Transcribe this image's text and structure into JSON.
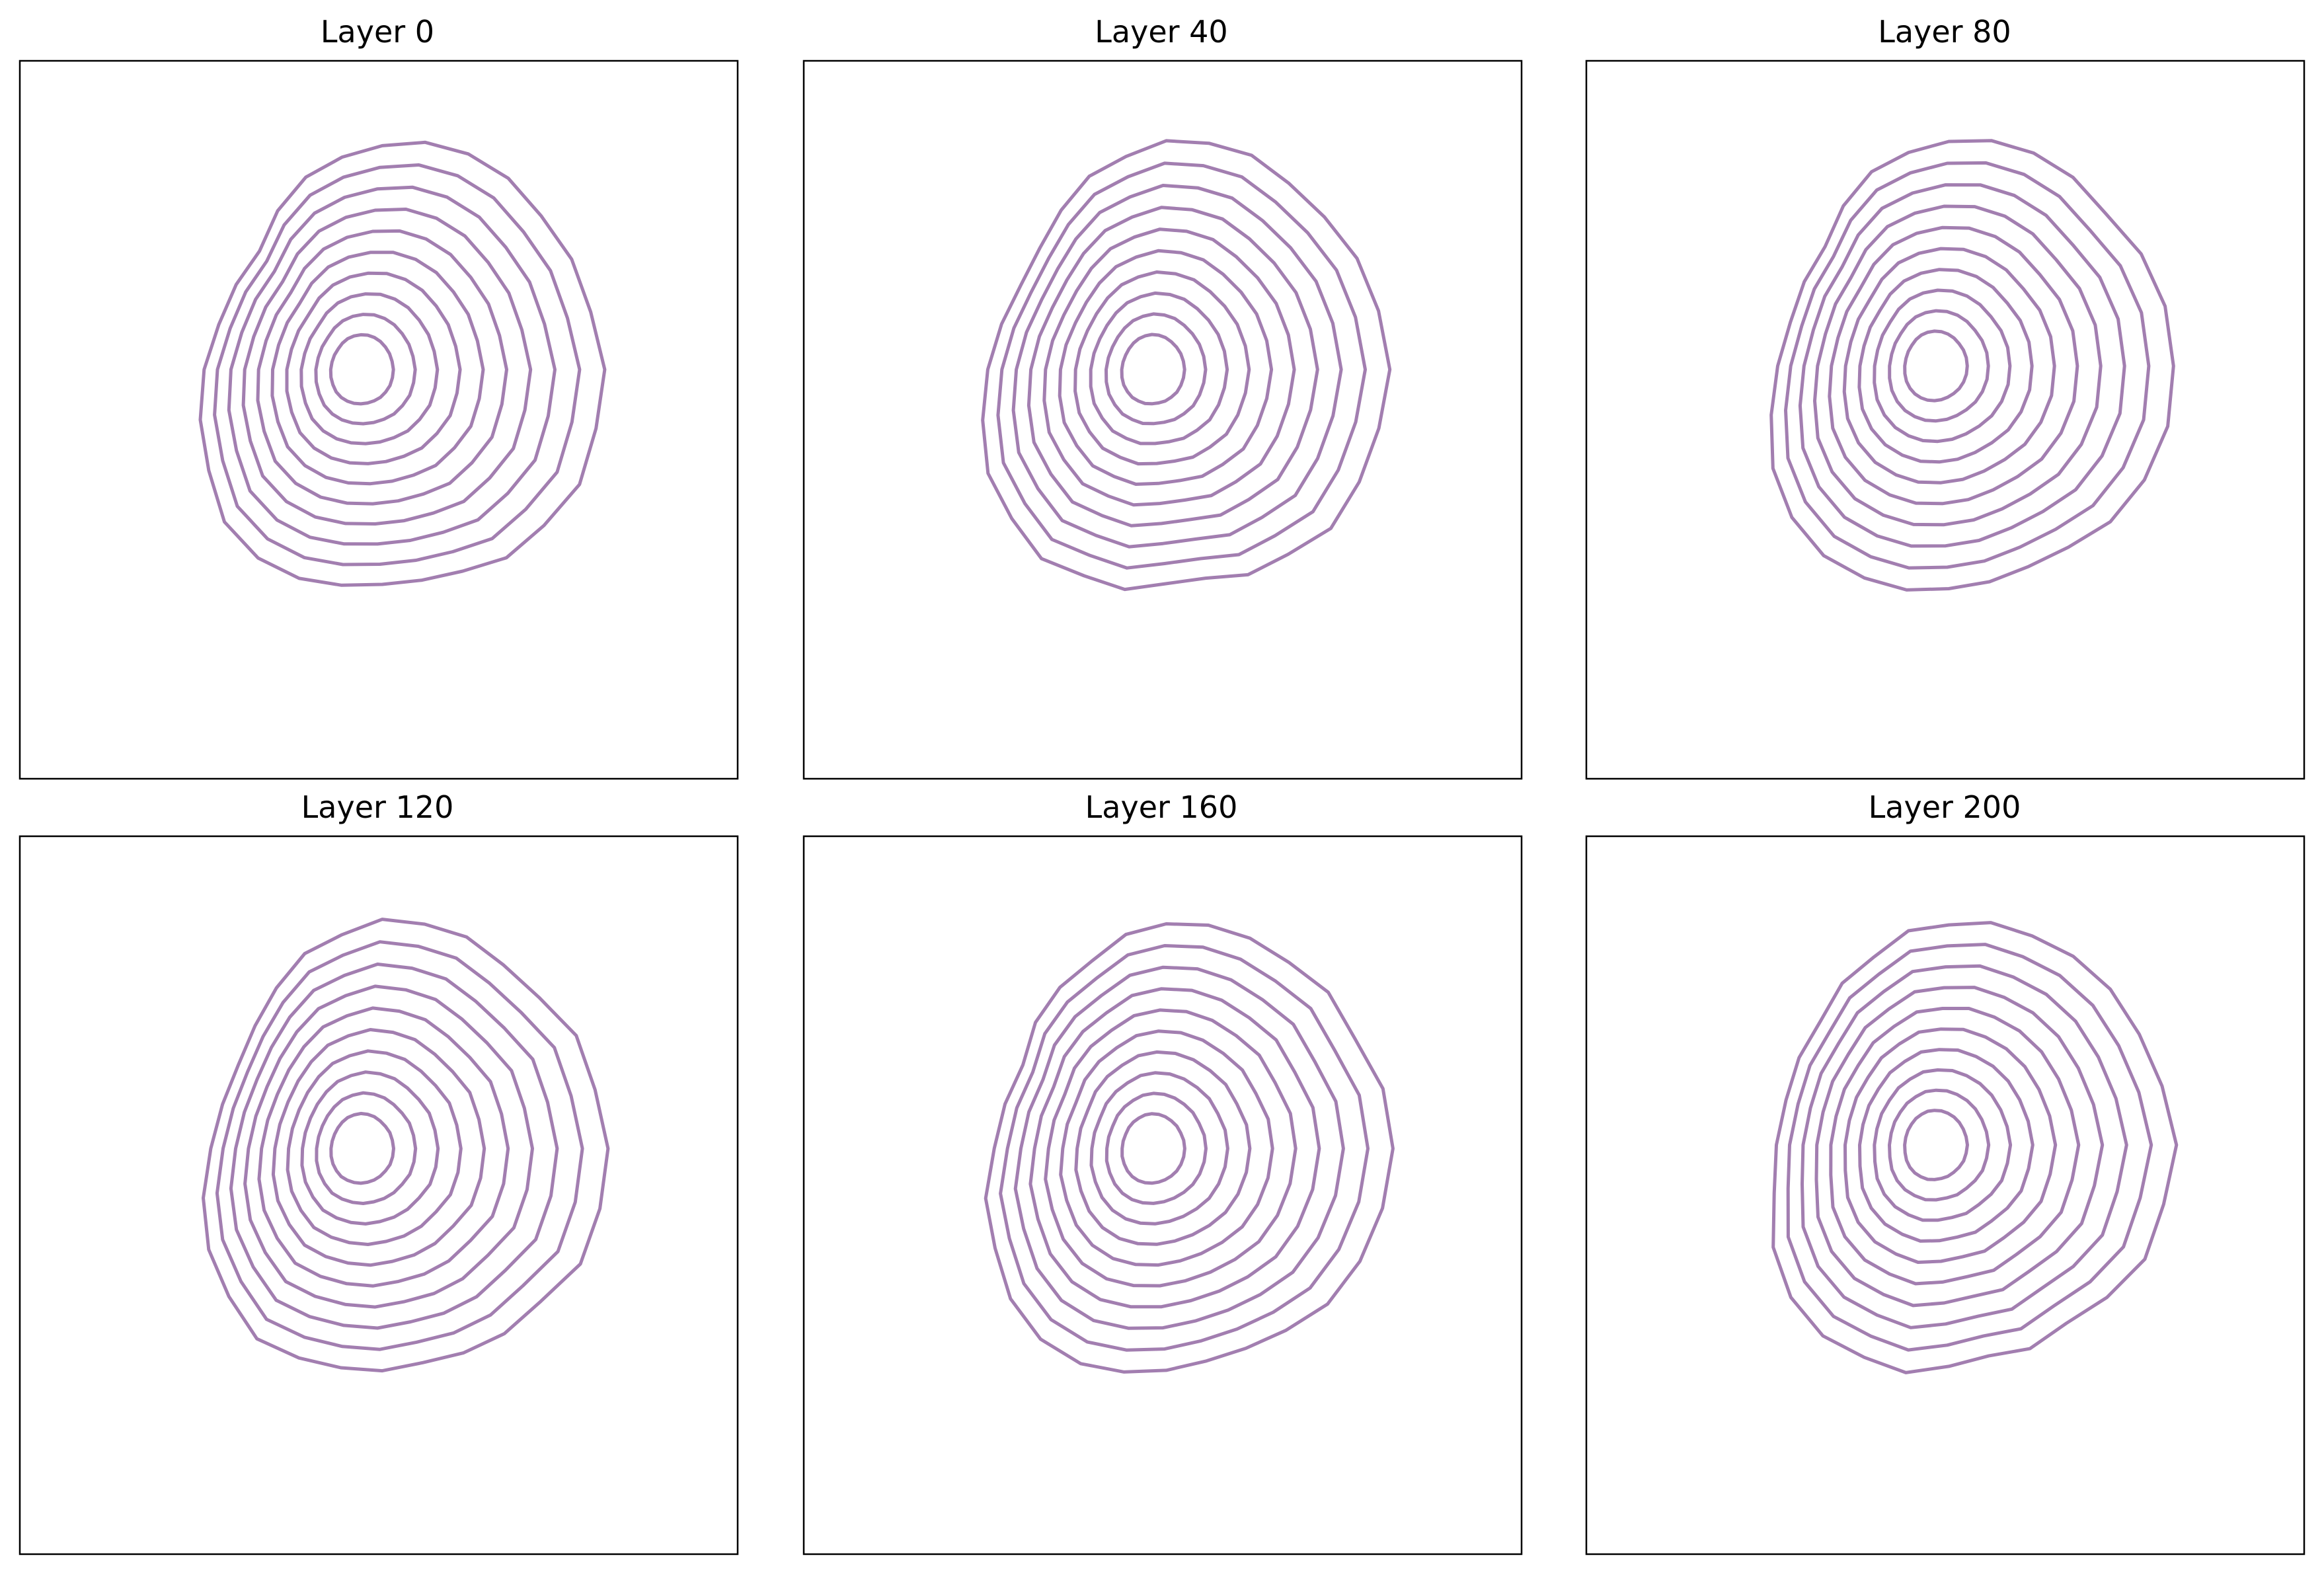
{
  "colors": {
    "contour": "#a27eb0",
    "frame": "#000000",
    "background": "#ffffff"
  },
  "chart_data": [
    {
      "type": "line",
      "title": "Layer 0",
      "series_kind": "nested closed contour loops",
      "loop_count": 10,
      "shape": {
        "cx": 0.505,
        "cy": 0.43,
        "r_outer": 0.31,
        "r_inner": 0.05,
        "drift": [
          -0.03,
          0.0
        ],
        "variant": 0
      },
      "xticks": [],
      "yticks": [],
      "grid": false
    },
    {
      "type": "line",
      "title": "Layer 40",
      "series_kind": "nested closed contour loops",
      "loop_count": 10,
      "shape": {
        "cx": 0.505,
        "cy": 0.43,
        "r_outer": 0.31,
        "r_inner": 0.05,
        "drift": [
          -0.02,
          0.0
        ],
        "variant": 1
      },
      "xticks": [],
      "yticks": [],
      "grid": false
    },
    {
      "type": "line",
      "title": "Layer 80",
      "series_kind": "nested closed contour loops",
      "loop_count": 10,
      "shape": {
        "cx": 0.505,
        "cy": 0.425,
        "r_outer": 0.31,
        "r_inner": 0.05,
        "drift": [
          -0.02,
          0.0
        ],
        "variant": 2
      },
      "xticks": [],
      "yticks": [],
      "grid": false
    },
    {
      "type": "line",
      "title": "Layer 120",
      "series_kind": "nested closed contour loops",
      "loop_count": 10,
      "shape": {
        "cx": 0.505,
        "cy": 0.435,
        "r_outer": 0.31,
        "r_inner": 0.05,
        "drift": [
          -0.03,
          0.0
        ],
        "variant": 3
      },
      "xticks": [],
      "yticks": [],
      "grid": false
    },
    {
      "type": "line",
      "title": "Layer 160",
      "series_kind": "nested closed contour loops",
      "loop_count": 10,
      "shape": {
        "cx": 0.505,
        "cy": 0.435,
        "r_outer": 0.31,
        "r_inner": 0.05,
        "drift": [
          -0.02,
          0.0
        ],
        "variant": 4
      },
      "xticks": [],
      "yticks": [],
      "grid": false
    },
    {
      "type": "line",
      "title": "Layer 200",
      "series_kind": "nested closed contour loops",
      "loop_count": 10,
      "shape": {
        "cx": 0.505,
        "cy": 0.43,
        "r_outer": 0.31,
        "r_inner": 0.05,
        "drift": [
          -0.02,
          0.0
        ],
        "variant": 5
      },
      "xticks": [],
      "yticks": [],
      "grid": false
    }
  ]
}
